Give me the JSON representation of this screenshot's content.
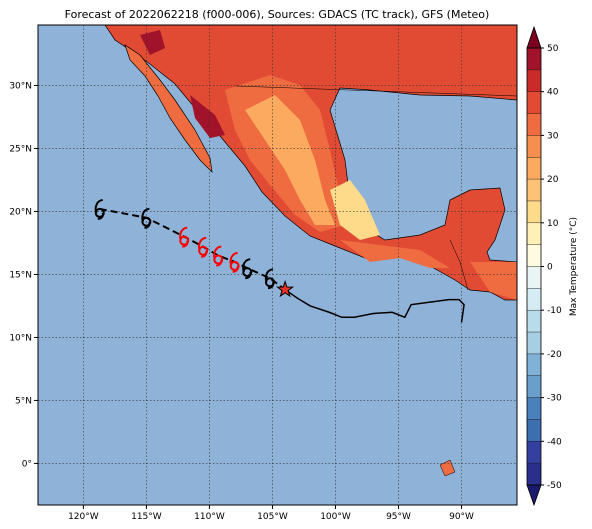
{
  "chart_data": {
    "type": "map",
    "title": "Forecast of 2022062218 (f000-006), Sources: GDACS (TC track), GFS (Meteo)",
    "xlim": [
      -123.6,
      -85.6
    ],
    "ylim": [
      -3.3,
      34.8
    ],
    "xticks": [
      {
        "value": -120,
        "label": "120°W"
      },
      {
        "value": -115,
        "label": "115°W"
      },
      {
        "value": -110,
        "label": "110°W"
      },
      {
        "value": -105,
        "label": "105°W"
      },
      {
        "value": -100,
        "label": "100°W"
      },
      {
        "value": -95,
        "label": "95°W"
      },
      {
        "value": -90,
        "label": "90°W"
      }
    ],
    "yticks": [
      {
        "value": 0,
        "label": "0°"
      },
      {
        "value": 5,
        "label": "5°N"
      },
      {
        "value": 10,
        "label": "10°N"
      },
      {
        "value": 15,
        "label": "15°N"
      },
      {
        "value": 20,
        "label": "20°N"
      },
      {
        "value": 25,
        "label": "25°N"
      },
      {
        "value": 30,
        "label": "30°N"
      }
    ],
    "grid": true,
    "ocean_color": "#8fb3d8",
    "forecast_track": {
      "lon": [
        -118.7,
        -115.0,
        -112.0,
        -110.5,
        -109.3,
        -108.0,
        -107.0,
        -105.2
      ],
      "lat": [
        20.2,
        19.5,
        18.0,
        17.2,
        16.5,
        16.0,
        15.5,
        14.7
      ],
      "colors": [
        "#000000",
        "#000000",
        "#ff0000",
        "#ff0000",
        "#ff0000",
        "#ff0000",
        "#000000",
        "#000000"
      ]
    },
    "current_position": {
      "lon": -104.0,
      "lat": 13.8,
      "color": "#e8302a"
    },
    "past_track": {
      "lon": [
        -104.0,
        -103.0,
        -102.0,
        -100.5,
        -99.5,
        -98.5,
        -97.0,
        -95.5,
        -94.5,
        -94.0,
        -92.5,
        -91.0,
        -90.2,
        -89.8,
        -90.0
      ],
      "lat": [
        13.8,
        13.1,
        12.5,
        12.0,
        11.6,
        11.6,
        11.9,
        12.0,
        11.6,
        12.6,
        12.8,
        13.0,
        13.0,
        12.6,
        11.2
      ]
    },
    "colorbar": {
      "label": "Max Temperature (°C)",
      "levels": [
        -50,
        -45,
        -40,
        -35,
        -30,
        -25,
        -20,
        -15,
        -10,
        -5,
        0,
        5,
        10,
        15,
        20,
        25,
        30,
        35,
        40,
        45,
        50
      ],
      "colors": [
        "#2a2f8c",
        "#353fa0",
        "#3b6fb0",
        "#4a80bc",
        "#6a9fcb",
        "#7fb2d6",
        "#a6cfe4",
        "#b9dceb",
        "#d6ecf3",
        "#e9f5f4",
        "#fffbe0",
        "#fff0b8",
        "#fedb8a",
        "#fdc276",
        "#fbaa5f",
        "#f58e4e",
        "#ef6b40",
        "#e14a33",
        "#c92a2a",
        "#a0132a"
      ],
      "extend_colors": [
        "#1a1a6e",
        "#7a0020"
      ],
      "ticks": [
        -50,
        -40,
        -30,
        -20,
        -10,
        0,
        10,
        20,
        30,
        40,
        50
      ]
    }
  }
}
